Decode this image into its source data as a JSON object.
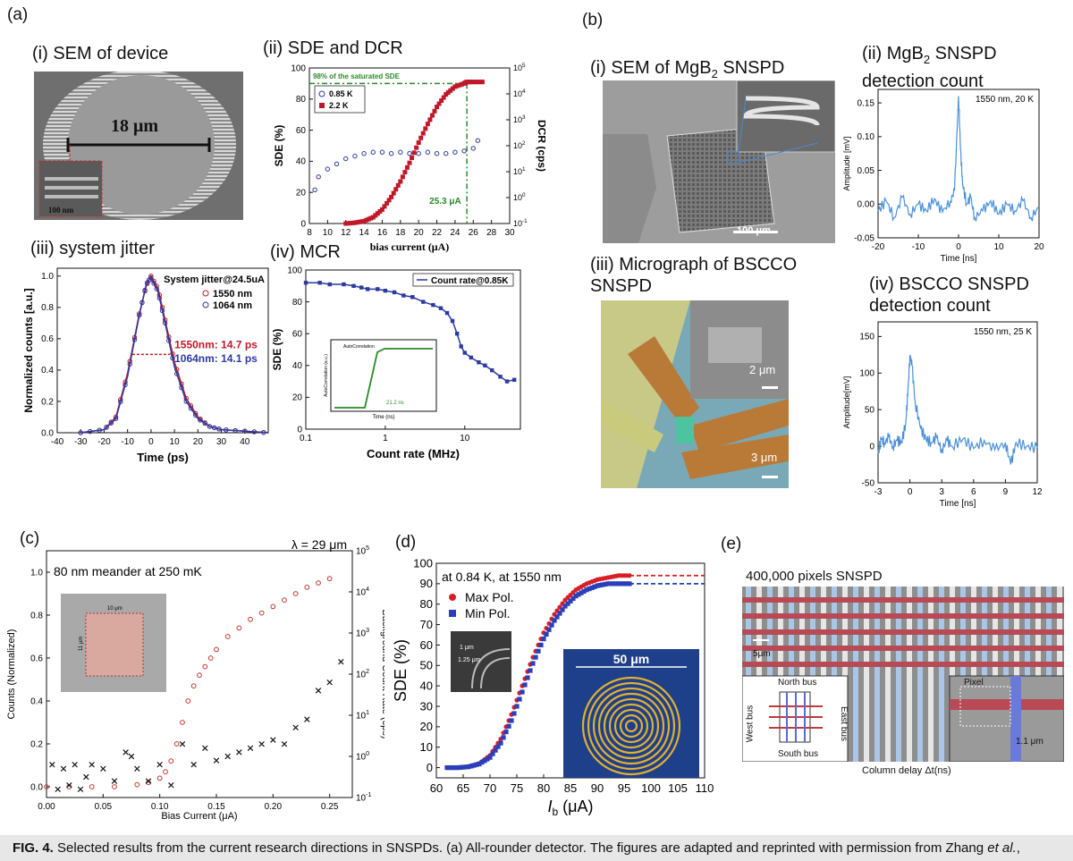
{
  "panel_a": {
    "label": "(a)",
    "sem": {
      "title": "(i) SEM of device",
      "scale": "18 μm",
      "inset_scale": "100 nm"
    },
    "sde_dcr": {
      "title": "(ii) SDE and DCR"
    },
    "jitter": {
      "title": "(iii) system jitter"
    },
    "mcr": {
      "title": "(iv) MCR"
    }
  },
  "panel_b": {
    "label": "(b)",
    "sem": {
      "title_prefix": "(i) SEM of MgB",
      "title_sub": "2",
      "title_suffix": " SNSPD",
      "scale": "100 μm"
    },
    "mgb2_count": {
      "title_line1_prefix": "(ii) MgB",
      "title_line1_sub": "2",
      "title_line1_suffix": " SNSPD",
      "title_line2": "detection count"
    },
    "micrograph": {
      "title_line1": "(iii) Micrograph of BSCCO",
      "title_line2": "SNSPD",
      "scale1": "2 μm",
      "scale2": "3 μm"
    },
    "bscco_count": {
      "title_line1": "(iv) BSCCO SNSPD",
      "title_line2": "detection count"
    }
  },
  "panel_c": {
    "label": "(c)"
  },
  "panel_d": {
    "label": "(d)",
    "inset_scale1": "1 μm",
    "inset_scale2": "1.25 μm",
    "inset2_scale": "50 μm"
  },
  "panel_e": {
    "label": "(e)",
    "title": "400,000 pixels SNSPD",
    "scale": "5μm",
    "north": "North bus",
    "south": "South bus",
    "west": "West bus",
    "east": "East bus",
    "pixel": "Pixel",
    "pixel_width": "1.1 μm",
    "xlabel": "Column delay Δt(ns)"
  },
  "caption": {
    "fig": "FIG. 4.",
    "text_before": " Selected results from the current research directions in SNSPDs. (a) All-rounder detector. The figures are adapted and reprinted with permission from Zhang ",
    "etal": "et al.",
    "text_after": ","
  },
  "chart_data": [
    {
      "id": "a-ii",
      "type": "scatter",
      "xlabel": "bias current (μA)",
      "ylabel": "SDE (%)",
      "y2label": "DCR (cps)",
      "xlim": [
        8,
        30
      ],
      "ylim": [
        0,
        100
      ],
      "y2lim_log10": [
        -1,
        5
      ],
      "xticks": [
        "8",
        "10",
        "12",
        "14",
        "16",
        "18",
        "20",
        "22",
        "24",
        "26",
        "28",
        "30"
      ],
      "yticks": [
        "0",
        "20",
        "40",
        "60",
        "80",
        "100"
      ],
      "y2ticks": [
        "10",
        "10",
        "10",
        "10",
        "10",
        "10",
        "10"
      ],
      "y2exps": [
        "-1",
        "0",
        "1",
        "2",
        "3",
        "4",
        "5"
      ],
      "annotations": [
        "98% of the saturated SDE",
        "25.3 μA"
      ],
      "series": [
        {
          "name": "0.85 K",
          "axis": "right-log10",
          "color": "#2c3aa0",
          "marker": "open-circle",
          "x": [
            8.6,
            9,
            10,
            11,
            12,
            13,
            14,
            15,
            16,
            17,
            18,
            19,
            20,
            21,
            22,
            23,
            24,
            25,
            26,
            26.5
          ],
          "y": [
            0.3,
            0.8,
            1.1,
            1.3,
            1.5,
            1.6,
            1.7,
            1.75,
            1.75,
            1.7,
            1.75,
            1.7,
            1.7,
            1.75,
            1.7,
            1.7,
            1.75,
            1.8,
            1.9,
            2.2
          ]
        },
        {
          "name": "2.2 K",
          "axis": "left",
          "color": "#c0182a",
          "marker": "filled-square",
          "x": [
            12,
            13,
            14,
            15,
            16,
            17,
            18,
            19,
            20,
            21,
            22,
            23,
            24,
            25,
            25.3,
            26,
            27
          ],
          "y": [
            0,
            0.5,
            1.5,
            4,
            9,
            17,
            27,
            39,
            52,
            64,
            75,
            83,
            88,
            90,
            91,
            91,
            91
          ]
        }
      ]
    },
    {
      "id": "a-iii",
      "type": "line",
      "xlabel": "Time (ps)",
      "ylabel": "Normalized counts [a.u.]",
      "xlim": [
        -40,
        50
      ],
      "ylim": [
        0,
        1.05
      ],
      "xticks": [
        "-40",
        "-30",
        "-20",
        "-10",
        "0",
        "10",
        "20",
        "30",
        "40"
      ],
      "yticks": [
        "0.0",
        "0.2",
        "0.4",
        "0.6",
        "0.8",
        "1.0"
      ],
      "legend_title": "System jitter@24.5uA",
      "annotations": [
        "1550nm: 14.7 ps",
        "1064nm: 14.1 ps"
      ],
      "series": [
        {
          "name": "1550 nm",
          "color": "#c0182a",
          "x": [
            -30,
            -20,
            -15,
            -10,
            -5,
            -2,
            0,
            3,
            6,
            10,
            15,
            20,
            25,
            30,
            40,
            50
          ],
          "y": [
            0,
            0.02,
            0.1,
            0.38,
            0.76,
            0.94,
            1.0,
            0.92,
            0.72,
            0.45,
            0.22,
            0.1,
            0.04,
            0.02,
            0.01,
            0
          ]
        },
        {
          "name": "1064 nm",
          "color": "#2c3aa0",
          "x": [
            -30,
            -20,
            -15,
            -10,
            -5,
            -2,
            0,
            3,
            6,
            10,
            15,
            20,
            25,
            30,
            40,
            50
          ],
          "y": [
            0,
            0.02,
            0.09,
            0.36,
            0.75,
            0.95,
            0.99,
            0.9,
            0.7,
            0.42,
            0.2,
            0.09,
            0.04,
            0.02,
            0.01,
            0
          ]
        }
      ]
    },
    {
      "id": "a-iv",
      "type": "line",
      "xlabel": "Count rate (MHz)",
      "ylabel": "SDE (%)",
      "xlim_log10": [
        -1,
        1.7
      ],
      "ylim": [
        0,
        100
      ],
      "xticks": [
        "0.1",
        "1",
        "10"
      ],
      "yticks": [
        "0",
        "20",
        "40",
        "60",
        "80",
        "100"
      ],
      "series": [
        {
          "name": "Count rate@0.85K",
          "color": "#2c3aa0",
          "x": [
            0.1,
            0.15,
            0.2,
            0.3,
            0.4,
            0.5,
            0.6,
            0.8,
            1,
            1.3,
            1.7,
            2.2,
            3,
            4,
            5,
            6,
            7,
            8,
            9,
            10,
            12,
            15,
            18,
            22,
            28,
            34,
            42
          ],
          "y": [
            92,
            92,
            91,
            91,
            90,
            89,
            88,
            88,
            87,
            86,
            84,
            83,
            80,
            78,
            76,
            73,
            68,
            60,
            52,
            48,
            45,
            42,
            40,
            37,
            33,
            30,
            31
          ]
        }
      ],
      "inset": {
        "xlabel": "Time (ns)",
        "ylabel": "AutoCorrelation (a.u.)",
        "legend": "AutoCorrelation",
        "annotation": "21.2 ns"
      }
    },
    {
      "id": "b-ii",
      "type": "line",
      "title": "1550 nm, 20 K",
      "xlabel": "Time [ns]",
      "ylabel": "Amplitude [mV]",
      "xlim": [
        -20,
        20
      ],
      "ylim": [
        -0.05,
        0.17
      ],
      "xticks": [
        "-20",
        "-10",
        "0",
        "10",
        "20"
      ],
      "yticks": [
        "-0.05",
        "0.00",
        "0.05",
        "0.10",
        "0.15"
      ],
      "series": [
        {
          "name": "",
          "color": "#4a90d9",
          "x": [
            -20,
            -18,
            -16,
            -14,
            -12,
            -10,
            -8,
            -6,
            -4,
            -2,
            -1,
            0,
            0.5,
            1,
            2,
            3,
            4,
            6,
            8,
            10,
            12,
            14,
            16,
            18,
            20
          ],
          "y": [
            -0.01,
            0.005,
            -0.02,
            0.01,
            -0.015,
            0.0,
            -0.01,
            0.008,
            -0.012,
            0.005,
            0.02,
            0.16,
            0.08,
            0.03,
            0.0,
            0.01,
            -0.02,
            -0.01,
            0.005,
            -0.015,
            0.0,
            -0.01,
            0.005,
            -0.02,
            -0.005
          ]
        }
      ]
    },
    {
      "id": "b-iv",
      "type": "line",
      "title": "1550 nm, 25 K",
      "xlabel": "Time [ns]",
      "ylabel": "Amplitude[mV]",
      "xlim": [
        -3,
        12
      ],
      "ylim": [
        -50,
        170
      ],
      "xticks": [
        "-3",
        "0",
        "3",
        "6",
        "9",
        "12"
      ],
      "yticks": [
        "-50",
        "0",
        "50",
        "100",
        "150"
      ],
      "series": [
        {
          "name": "",
          "color": "#4a90d9",
          "x": [
            -3,
            -2.7,
            -2.4,
            -2,
            -1.6,
            -1.2,
            -0.8,
            -0.4,
            -0.2,
            0,
            0.2,
            0.5,
            1,
            1.5,
            2,
            2.5,
            3,
            3.5,
            4,
            5,
            6,
            7,
            8,
            9,
            9.5,
            10,
            11,
            12
          ],
          "y": [
            -10,
            10,
            5,
            12,
            0,
            8,
            5,
            30,
            70,
            125,
            110,
            60,
            25,
            10,
            5,
            12,
            -5,
            8,
            0,
            10,
            -3,
            8,
            -5,
            5,
            -25,
            5,
            0,
            -2
          ]
        }
      ]
    },
    {
      "id": "c",
      "type": "scatter",
      "title": "λ = 29 μm",
      "annotation": "80 nm meander at 250 mK",
      "xlabel": "Bias Current (μA)",
      "ylabel": "Counts (Normalized)",
      "y2label": "Background Count Rate (cps)",
      "xlim": [
        0,
        0.27
      ],
      "ylim": [
        -0.05,
        1.1
      ],
      "y2lim_log10": [
        -1,
        5
      ],
      "xticks": [
        "0.00",
        "0.05",
        "0.10",
        "0.15",
        "0.20",
        "0.25"
      ],
      "yticks": [
        "0.0",
        "0.2",
        "0.4",
        "0.6",
        "0.8",
        "1.0"
      ],
      "y2ticks": [
        "10",
        "10",
        "10",
        "10",
        "10",
        "10",
        "10"
      ],
      "y2exps": [
        "-1",
        "0",
        "1",
        "2",
        "3",
        "4",
        "5"
      ],
      "inset_scale": [
        "10 μm",
        "11 μm"
      ],
      "series": [
        {
          "name": "",
          "color": "#c0392b",
          "marker": "open-circle",
          "axis": "left",
          "x": [
            0.0,
            0.02,
            0.04,
            0.06,
            0.08,
            0.09,
            0.1,
            0.105,
            0.11,
            0.115,
            0.12,
            0.125,
            0.13,
            0.135,
            0.14,
            0.145,
            0.15,
            0.16,
            0.17,
            0.18,
            0.19,
            0.2,
            0.21,
            0.22,
            0.23,
            0.24,
            0.25
          ],
          "y": [
            0,
            0,
            0,
            0,
            0.01,
            0.02,
            0.04,
            0.07,
            0.12,
            0.2,
            0.3,
            0.4,
            0.47,
            0.52,
            0.56,
            0.6,
            0.64,
            0.7,
            0.74,
            0.78,
            0.81,
            0.84,
            0.87,
            0.9,
            0.93,
            0.95,
            0.97
          ]
        },
        {
          "name": "",
          "color": "#111111",
          "marker": "x",
          "axis": "right-log10",
          "x": [
            0.005,
            0.01,
            0.015,
            0.02,
            0.025,
            0.03,
            0.035,
            0.04,
            0.05,
            0.06,
            0.07,
            0.075,
            0.08,
            0.09,
            0.1,
            0.11,
            0.12,
            0.13,
            0.14,
            0.15,
            0.16,
            0.17,
            0.18,
            0.19,
            0.2,
            0.21,
            0.22,
            0.23,
            0.24,
            0.25,
            0.26
          ],
          "y": [
            -0.2,
            -0.8,
            -0.3,
            -0.7,
            -0.2,
            -0.8,
            -0.5,
            -0.2,
            -0.3,
            -0.6,
            0.1,
            0.0,
            -0.3,
            -0.6,
            -0.2,
            -0.7,
            0.3,
            -0.2,
            0.2,
            -0.1,
            0.0,
            0.1,
            0.2,
            0.3,
            0.4,
            0.3,
            0.7,
            0.9,
            1.6,
            1.8,
            2.3
          ]
        }
      ]
    },
    {
      "id": "d",
      "type": "scatter",
      "annotation": "at 0.84 K, at 1550 nm",
      "xlabel": "I",
      "xlabel_sub": "b",
      "xlabel_unit": " (μA)",
      "ylabel": "SDE (%)",
      "xlim": [
        60,
        110
      ],
      "ylim": [
        -5,
        100
      ],
      "xticks": [
        "60",
        "65",
        "70",
        "75",
        "80",
        "85",
        "90",
        "95",
        "100",
        "105",
        "110"
      ],
      "yticks": [
        "0",
        "10",
        "20",
        "30",
        "40",
        "50",
        "60",
        "70",
        "80",
        "90",
        "100"
      ],
      "series": [
        {
          "name": "Max Pol.",
          "color": "#d81f26",
          "marker": "filled-circle",
          "x": [
            62,
            64,
            66,
            68,
            70,
            72,
            74,
            76,
            78,
            80,
            82,
            84,
            86,
            88,
            90,
            92,
            94,
            96
          ],
          "y": [
            0,
            0,
            0.5,
            2,
            6,
            14,
            26,
            40,
            54,
            66,
            75,
            82,
            87,
            90,
            92,
            93,
            94,
            94
          ]
        },
        {
          "name": "Min Pol.",
          "color": "#2b3fb8",
          "marker": "filled-square",
          "x": [
            62,
            64,
            66,
            68,
            70,
            72,
            74,
            76,
            78,
            80,
            82,
            84,
            86,
            88,
            90,
            92,
            94,
            96
          ],
          "y": [
            0,
            0,
            0.4,
            1.8,
            5,
            12,
            23,
            37,
            51,
            63,
            72,
            79,
            84,
            87,
            89,
            90,
            90,
            90
          ]
        }
      ]
    }
  ]
}
